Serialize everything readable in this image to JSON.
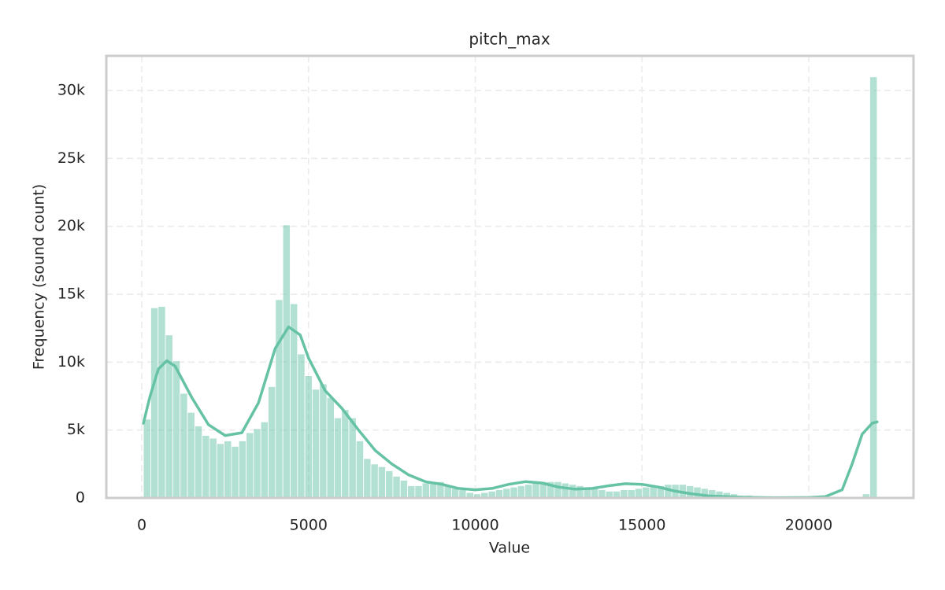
{
  "chart_data": {
    "type": "histogram",
    "title": "pitch_max",
    "xlabel": "Value",
    "ylabel": "Frequency (sound count)",
    "color": "#66c2a5",
    "bins": [
      50,
      270,
      490,
      710,
      930,
      1150,
      1370,
      1590,
      1810,
      2030,
      2250,
      2470,
      2690,
      2910,
      3130,
      3350,
      3570,
      3790,
      4010,
      4230,
      4450,
      4670,
      4890,
      5110,
      5330,
      5550,
      5770,
      5990,
      6210,
      6430,
      6650,
      6870,
      7090,
      7310,
      7530,
      7750,
      7970,
      8190,
      8410,
      8630,
      8850,
      9070,
      9290,
      9510,
      9730,
      9950,
      10170,
      10390,
      10610,
      10830,
      11050,
      11270,
      11490,
      11710,
      11930,
      12150,
      12370,
      12590,
      12810,
      13030,
      13250,
      13470,
      13690,
      13910,
      14130,
      14350,
      14570,
      14790,
      15010,
      15230,
      15450,
      15670,
      15890,
      16110,
      16330,
      16550,
      16770,
      16990,
      17210,
      17430,
      17650,
      17870,
      18090,
      18310,
      18530,
      18750,
      18970,
      19190,
      19410,
      19630,
      19850,
      20070,
      20290,
      20510,
      20730,
      20950,
      21170,
      21390,
      21610,
      21830,
      22050
    ],
    "values": [
      5800,
      14000,
      14100,
      12000,
      10100,
      7700,
      6300,
      5300,
      4600,
      4400,
      4000,
      4200,
      3800,
      4200,
      4800,
      5100,
      5600,
      8200,
      14600,
      20100,
      14300,
      10600,
      9000,
      8000,
      8400,
      7400,
      5900,
      6500,
      5900,
      4200,
      2900,
      2500,
      2300,
      2000,
      1600,
      1300,
      900,
      900,
      1100,
      1200,
      1200,
      900,
      700,
      600,
      400,
      300,
      400,
      500,
      600,
      700,
      800,
      900,
      1000,
      1100,
      1200,
      1200,
      1200,
      1100,
      1000,
      900,
      800,
      700,
      600,
      500,
      500,
      600,
      600,
      700,
      800,
      900,
      900,
      1000,
      1000,
      1000,
      900,
      800,
      700,
      600,
      500,
      400,
      300,
      200,
      200,
      150,
      100,
      80,
      60,
      50,
      40,
      30,
      30,
      20,
      20,
      20,
      30,
      40,
      60,
      100,
      300,
      31000
    ],
    "kde": {
      "x": [
        50,
        250,
        500,
        750,
        1000,
        1500,
        2000,
        2500,
        3000,
        3500,
        4000,
        4400,
        4750,
        5000,
        5500,
        6000,
        6500,
        7000,
        7500,
        8000,
        8500,
        9000,
        9500,
        10000,
        10500,
        11000,
        11500,
        12000,
        12500,
        13000,
        13500,
        14000,
        14500,
        15000,
        15500,
        16000,
        16500,
        17000,
        18000,
        19000,
        20000,
        20500,
        21000,
        21300,
        21600,
        21900,
        22050
      ],
      "values": [
        5500,
        7500,
        9500,
        10100,
        9700,
        7400,
        5400,
        4600,
        4800,
        7000,
        11000,
        12600,
        12000,
        10300,
        7900,
        6600,
        5000,
        3500,
        2500,
        1700,
        1200,
        1000,
        700,
        600,
        700,
        1000,
        1200,
        1100,
        800,
        650,
        700,
        900,
        1050,
        1000,
        800,
        500,
        300,
        150,
        50,
        20,
        30,
        100,
        600,
        2500,
        4700,
        5500,
        5600
      ]
    },
    "xlim": [
      -1063,
      23140
    ],
    "xticks": [
      0,
      5000,
      10000,
      15000,
      20000
    ],
    "ylim": [
      0,
      32550
    ],
    "yticks": [
      0,
      {
        "value": 5000,
        "label": "5k"
      },
      {
        "value": 10000,
        "label": "10k"
      },
      {
        "value": 15000,
        "label": "15k"
      },
      {
        "value": 20000,
        "label": "20k"
      },
      {
        "value": 25000,
        "label": "25k"
      },
      {
        "value": 30000,
        "label": "30k"
      }
    ],
    "grid": true
  }
}
